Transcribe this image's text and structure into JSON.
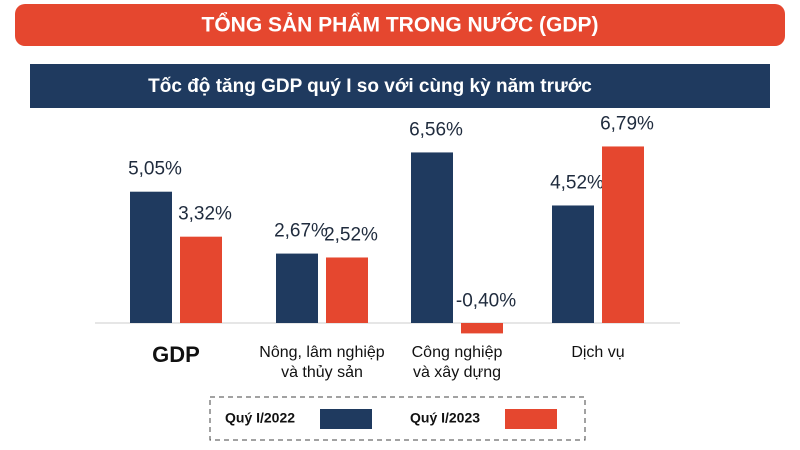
{
  "chart_data": {
    "type": "bar",
    "title": "TỔNG SẢN PHẨM TRONG NƯỚC (GDP)",
    "subtitle": "Tốc độ tăng GDP quý I so với cùng kỳ năm trước",
    "categories": [
      "GDP",
      "Nông, lâm nghiệp\nvà thủy sản",
      "Công nghiệp\nvà xây dựng",
      "Dịch vụ"
    ],
    "series": [
      {
        "name": "Quý I/2022",
        "color": "#1f3a5f",
        "values": [
          5.05,
          2.67,
          6.56,
          4.52
        ],
        "value_labels": [
          "5,05%",
          "2,67%",
          "6,56%",
          "4,52%"
        ]
      },
      {
        "name": "Quý I/2023",
        "color": "#e5472f",
        "values": [
          3.32,
          2.52,
          -0.4,
          6.79
        ],
        "value_labels": [
          "3,32%",
          "2,52%",
          "-0,40%",
          "6,79%"
        ]
      }
    ]
  }
}
